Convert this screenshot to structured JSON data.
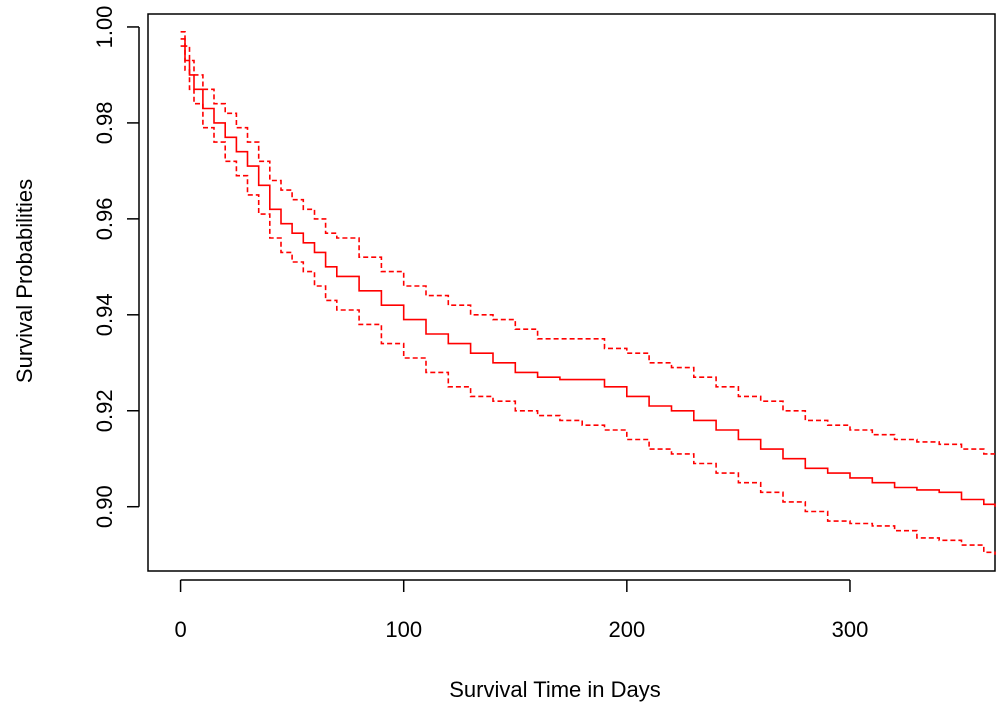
{
  "chart_data": {
    "type": "line",
    "title": "",
    "xlabel": "Survival Time in Days",
    "ylabel": "Survival Probabilities",
    "xlim": [
      -14.6,
      365
    ],
    "ylim": [
      0.8866,
      1.0027
    ],
    "xticks": [
      0,
      100,
      200,
      300
    ],
    "yticks": [
      0.9,
      0.92,
      0.94,
      0.96,
      0.98,
      1.0
    ],
    "xtick_labels": [
      "0",
      "100",
      "200",
      "300"
    ],
    "ytick_labels": [
      "0.90",
      "0.92",
      "0.94",
      "0.96",
      "0.98",
      "1.00"
    ],
    "grid": false,
    "line_color": "#ff0000",
    "series": [
      {
        "style": "solid",
        "x": [
          0,
          2,
          4,
          6,
          10,
          15,
          20,
          25,
          30,
          35,
          40,
          45,
          50,
          55,
          60,
          65,
          70,
          80,
          90,
          100,
          110,
          120,
          130,
          140,
          150,
          160,
          170,
          180,
          190,
          200,
          210,
          220,
          230,
          240,
          250,
          260,
          270,
          280,
          290,
          300,
          310,
          320,
          330,
          340,
          350,
          360,
          365
        ],
        "y": [
          0.9975,
          0.993,
          0.99,
          0.987,
          0.983,
          0.98,
          0.977,
          0.974,
          0.971,
          0.967,
          0.962,
          0.959,
          0.957,
          0.955,
          0.953,
          0.95,
          0.948,
          0.945,
          0.942,
          0.939,
          0.936,
          0.934,
          0.932,
          0.93,
          0.928,
          0.927,
          0.9265,
          0.9265,
          0.925,
          0.923,
          0.921,
          0.92,
          0.918,
          0.916,
          0.914,
          0.912,
          0.91,
          0.908,
          0.907,
          0.906,
          0.905,
          0.904,
          0.9035,
          0.903,
          0.9015,
          0.9005,
          0.9
        ]
      },
      {
        "style": "dashed",
        "x": [
          0,
          2,
          4,
          6,
          10,
          15,
          20,
          25,
          30,
          35,
          40,
          45,
          50,
          55,
          60,
          65,
          70,
          80,
          90,
          100,
          110,
          120,
          130,
          140,
          150,
          160,
          170,
          180,
          190,
          200,
          210,
          220,
          230,
          240,
          250,
          260,
          270,
          280,
          290,
          300,
          310,
          320,
          330,
          340,
          350,
          360,
          365
        ],
        "y": [
          0.999,
          0.996,
          0.993,
          0.99,
          0.987,
          0.984,
          0.982,
          0.979,
          0.976,
          0.972,
          0.968,
          0.966,
          0.964,
          0.962,
          0.96,
          0.957,
          0.956,
          0.952,
          0.949,
          0.946,
          0.944,
          0.942,
          0.94,
          0.939,
          0.937,
          0.935,
          0.935,
          0.935,
          0.933,
          0.932,
          0.93,
          0.929,
          0.927,
          0.925,
          0.923,
          0.922,
          0.92,
          0.918,
          0.917,
          0.916,
          0.915,
          0.914,
          0.9135,
          0.913,
          0.912,
          0.911,
          0.911
        ]
      },
      {
        "style": "dashed",
        "x": [
          0,
          2,
          4,
          6,
          10,
          15,
          20,
          25,
          30,
          35,
          40,
          45,
          50,
          55,
          60,
          65,
          70,
          80,
          90,
          100,
          110,
          120,
          130,
          140,
          150,
          160,
          170,
          180,
          190,
          200,
          210,
          220,
          230,
          240,
          250,
          260,
          270,
          280,
          290,
          300,
          310,
          320,
          330,
          340,
          350,
          360,
          365
        ],
        "y": [
          0.996,
          0.991,
          0.987,
          0.984,
          0.979,
          0.976,
          0.972,
          0.969,
          0.965,
          0.961,
          0.956,
          0.953,
          0.951,
          0.949,
          0.946,
          0.943,
          0.941,
          0.938,
          0.934,
          0.931,
          0.928,
          0.925,
          0.923,
          0.922,
          0.92,
          0.919,
          0.918,
          0.917,
          0.916,
          0.914,
          0.912,
          0.911,
          0.909,
          0.907,
          0.905,
          0.903,
          0.901,
          0.899,
          0.897,
          0.8965,
          0.896,
          0.895,
          0.8935,
          0.893,
          0.892,
          0.8905,
          0.89
        ]
      }
    ]
  }
}
